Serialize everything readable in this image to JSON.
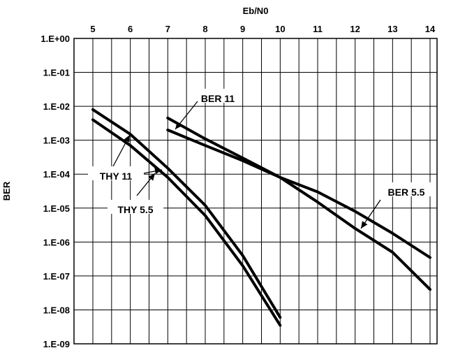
{
  "chart_data": {
    "type": "line",
    "xlabel": "Eb/N0",
    "ylabel": "BER",
    "xlim": [
      5,
      14
    ],
    "ylim": [
      1e-09,
      1
    ],
    "yscale": "log",
    "x_axis_position": "top",
    "grid": true,
    "x_ticks": [
      "5",
      "6",
      "7",
      "8",
      "9",
      "10",
      "11",
      "12",
      "13",
      "14"
    ],
    "y_ticks": [
      "1.E+00",
      "1.E-01",
      "1.E-02",
      "1.E-03",
      "1.E-04",
      "1.E-05",
      "1.E-06",
      "1.E-07",
      "1.E-08",
      "1.E-09"
    ],
    "series": [
      {
        "name": "THY 11",
        "x": [
          5,
          6,
          7,
          8,
          9,
          10
        ],
        "y": [
          0.008,
          0.0015,
          0.00015,
          1.2e-05,
          4e-07,
          6e-09
        ]
      },
      {
        "name": "THY 5.5",
        "x": [
          5,
          6,
          7,
          8,
          9,
          10
        ],
        "y": [
          0.004,
          0.0007,
          8e-05,
          6e-06,
          2e-07,
          3.5e-09
        ]
      },
      {
        "name": "BER 11",
        "x": [
          7,
          8,
          9,
          10,
          11,
          12,
          13,
          14
        ],
        "y": [
          0.0045,
          0.0011,
          0.0003,
          8e-05,
          1.5e-05,
          2.5e-06,
          5e-07,
          4e-08
        ]
      },
      {
        "name": "BER 5.5",
        "x": [
          7,
          8,
          9,
          10,
          11,
          12,
          13,
          14
        ],
        "y": [
          0.002,
          0.0007,
          0.00025,
          8e-05,
          3e-05,
          8e-06,
          1.8e-06,
          3.5e-07
        ]
      }
    ],
    "annotations": [
      "BER 11",
      "THY 11",
      "THY 5.5",
      "BER 5.5"
    ]
  }
}
